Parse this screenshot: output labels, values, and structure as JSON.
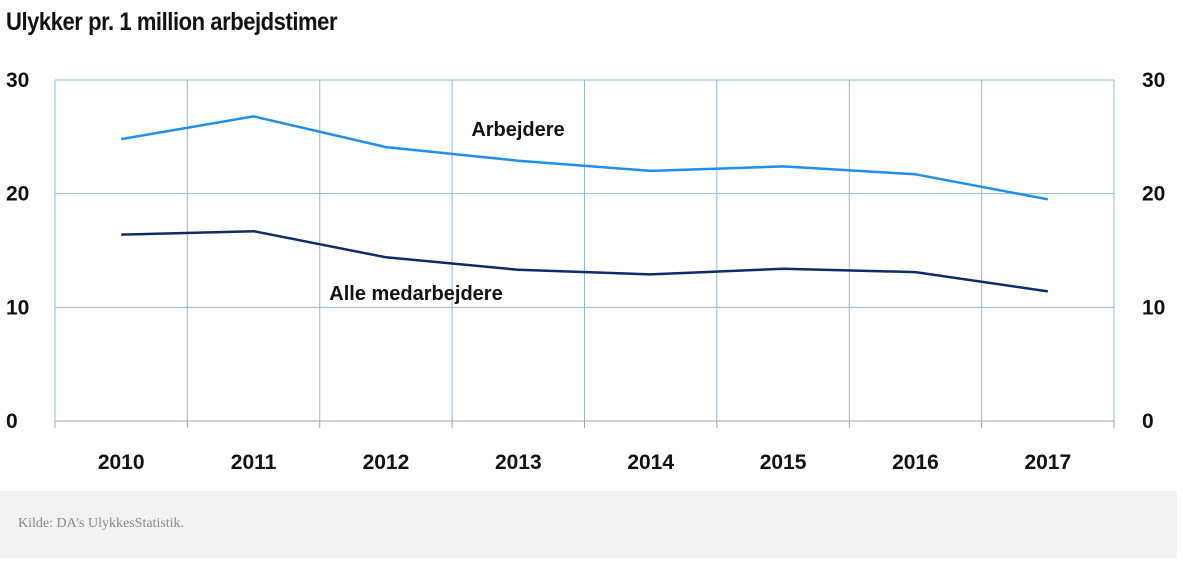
{
  "chart_data": {
    "type": "line",
    "title": "Ulykker pr. 1 million arbejdstimer",
    "categories": [
      "2010",
      "2011",
      "2012",
      "2013",
      "2014",
      "2015",
      "2016",
      "2017"
    ],
    "series": [
      {
        "name": "Arbejdere",
        "color": "#1e90ec",
        "values": [
          24.8,
          26.8,
          24.1,
          22.9,
          22.0,
          22.4,
          21.7,
          19.5
        ]
      },
      {
        "name": "Alle medarbejdere",
        "color": "#0d2c6c",
        "values": [
          16.4,
          16.7,
          14.4,
          13.3,
          12.9,
          13.4,
          13.1,
          11.4
        ]
      }
    ],
    "ylim": [
      0,
      30
    ],
    "yticks": [
      0,
      10,
      20,
      30
    ],
    "grid": true,
    "secondary_axis": true
  },
  "colors": {
    "grid": "#8fb8dd",
    "axis": "#9aa6b2"
  },
  "footer": {
    "source": "Kilde: DA’s UlykkesStatistik."
  }
}
